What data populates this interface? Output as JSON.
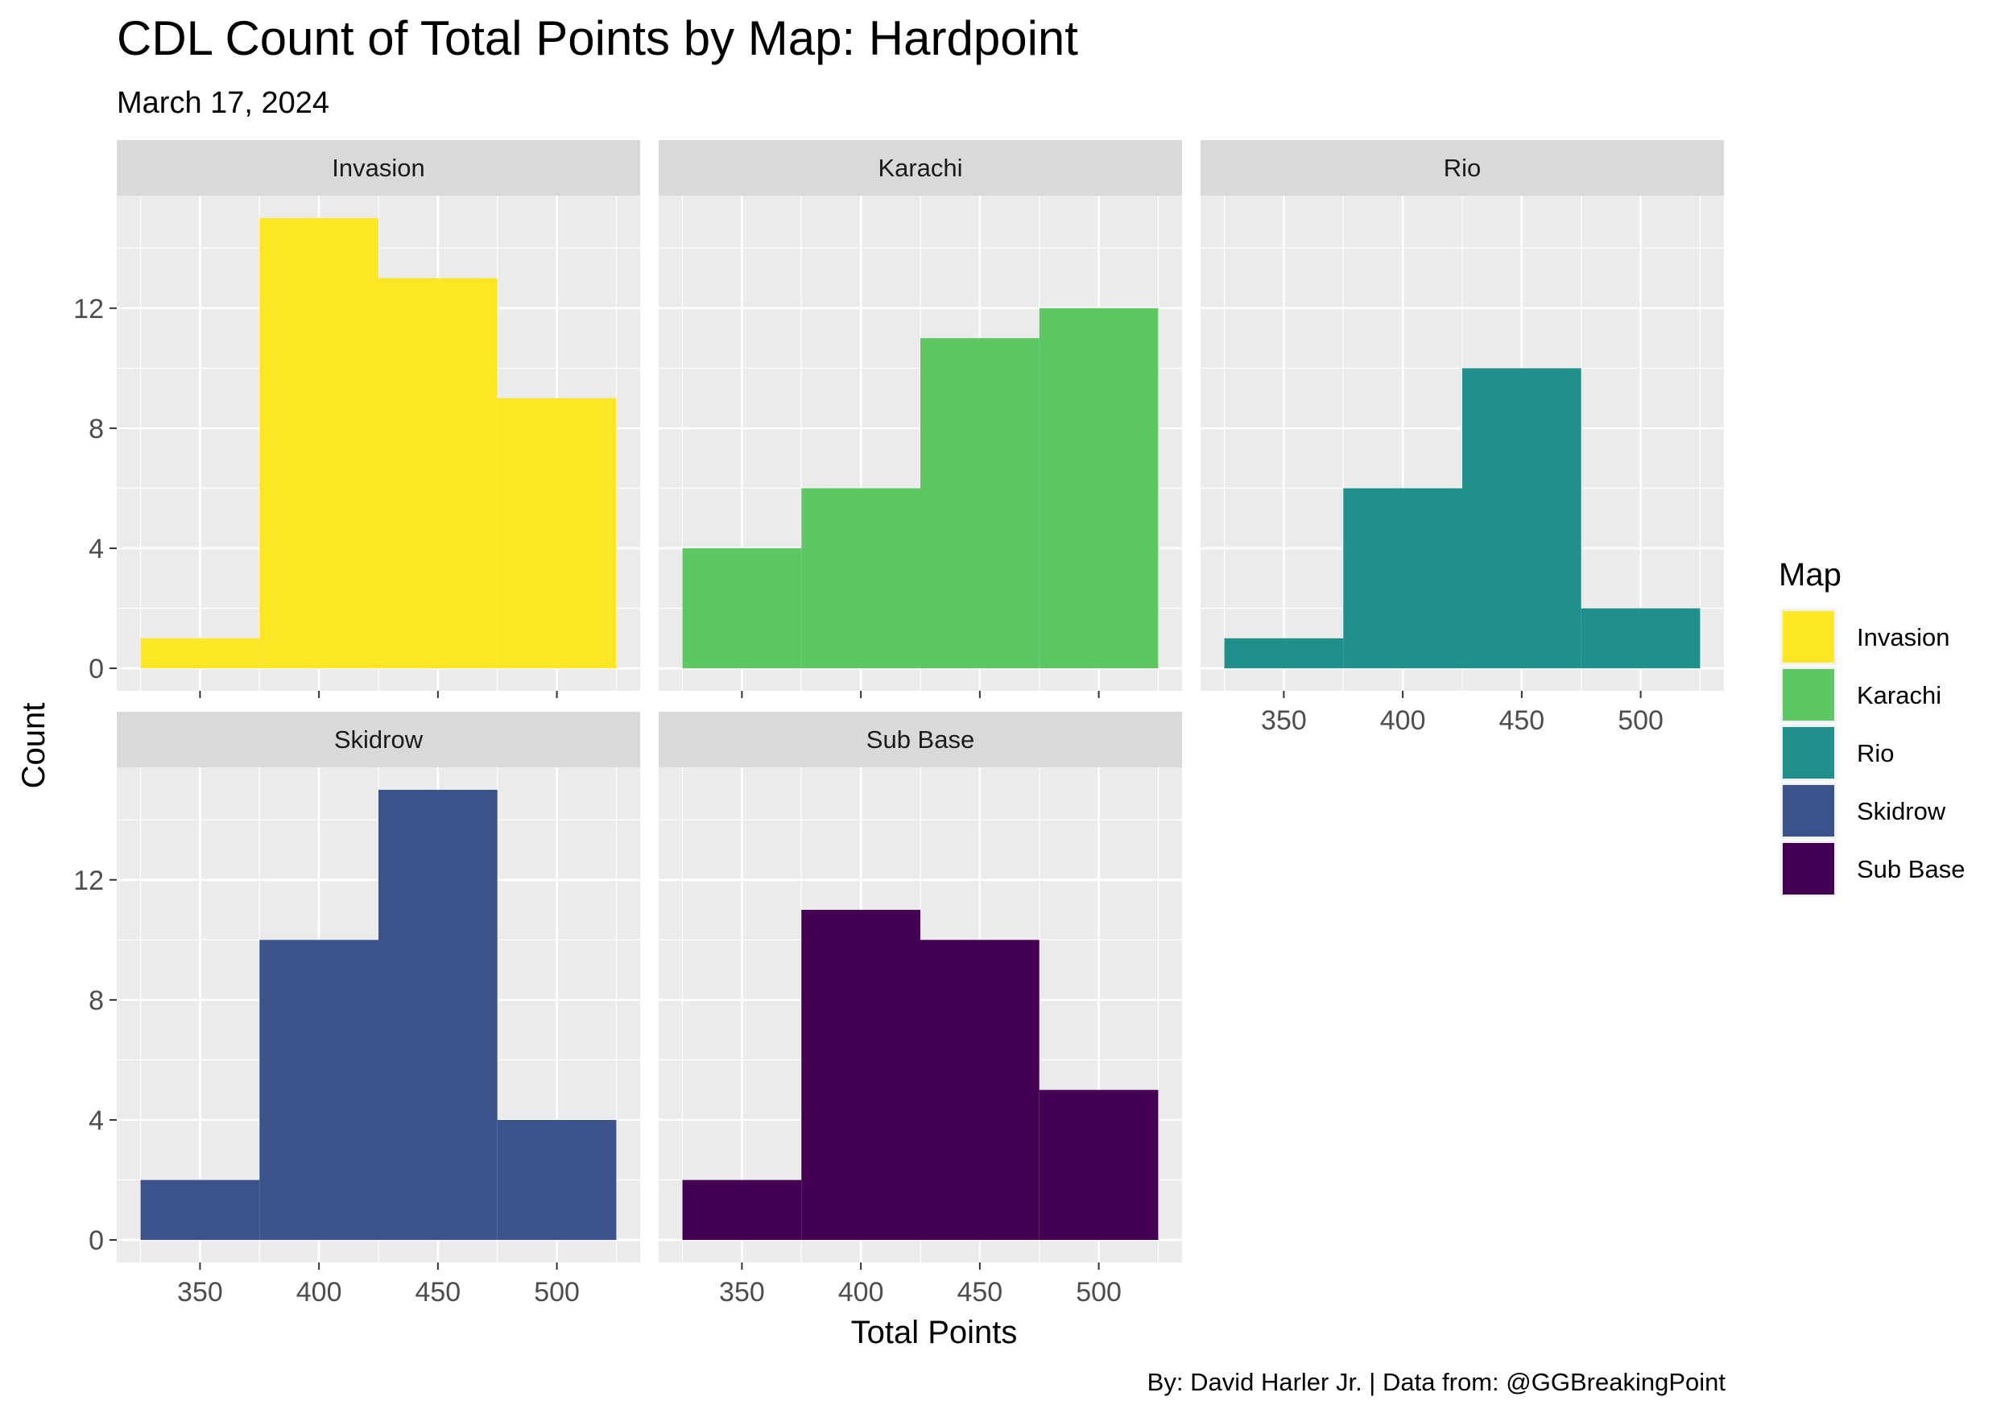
{
  "chart_data": {
    "type": "bar",
    "title": "CDL Count of Total Points by Map: Hardpoint",
    "subtitle": "March 17, 2024",
    "caption": "By: David Harler Jr. | Data from: @GGBreakingPoint",
    "xlabel": "Total Points",
    "ylabel": "Count",
    "bin_edges": [
      325,
      375,
      425,
      475,
      525
    ],
    "x_ticks": [
      "350",
      "400",
      "450",
      "500"
    ],
    "x_tick_values": [
      350,
      400,
      450,
      500
    ],
    "y_ticks": [
      "0",
      "4",
      "8",
      "12"
    ],
    "y_tick_values": [
      0,
      4,
      8,
      12
    ],
    "xlim": [
      315,
      535
    ],
    "ylim": [
      -0.75,
      15.75
    ],
    "grid": true,
    "legend": {
      "title": "Map",
      "position": "right",
      "items": [
        {
          "label": "Invasion",
          "color": "#FDE725"
        },
        {
          "label": "Karachi",
          "color": "#5DC863"
        },
        {
          "label": "Rio",
          "color": "#21908C"
        },
        {
          "label": "Skidrow",
          "color": "#3B528B"
        },
        {
          "label": "Sub Base",
          "color": "#440154"
        }
      ]
    },
    "panels": [
      {
        "name": "Invasion",
        "color": "#FDE725",
        "values": [
          1,
          15,
          13,
          9
        ]
      },
      {
        "name": "Karachi",
        "color": "#5DC863",
        "values": [
          4,
          6,
          11,
          12
        ]
      },
      {
        "name": "Rio",
        "color": "#21908C",
        "values": [
          1,
          6,
          10,
          2
        ]
      },
      {
        "name": "Skidrow",
        "color": "#3B528B",
        "values": [
          2,
          10,
          15,
          4
        ]
      },
      {
        "name": "Sub Base",
        "color": "#440154",
        "values": [
          2,
          11,
          10,
          5
        ]
      }
    ]
  }
}
